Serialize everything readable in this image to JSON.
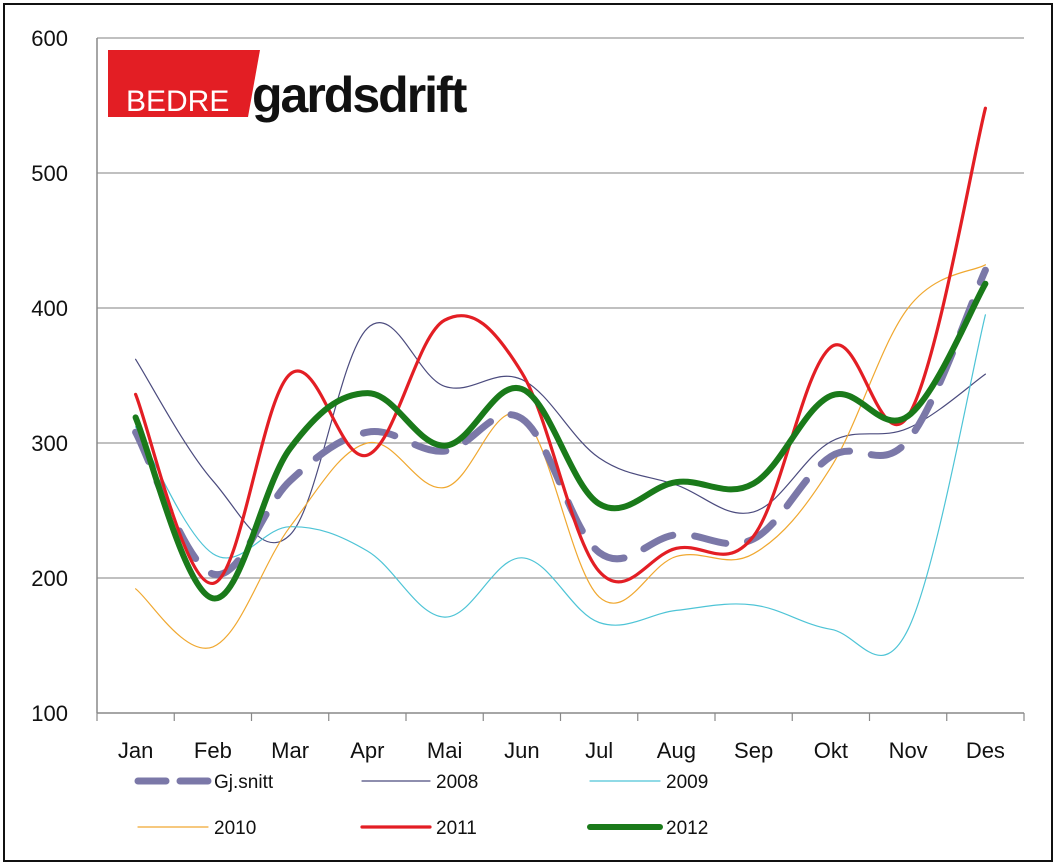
{
  "logo": {
    "part1": "BEDRE",
    "part2": "gardsdrift",
    "accent": "#e31e24"
  },
  "chart_data": {
    "type": "line",
    "title": "",
    "xlabel": "",
    "ylabel": "",
    "ylim": [
      100,
      600
    ],
    "yticks": [
      100,
      200,
      300,
      400,
      500,
      600
    ],
    "grid": true,
    "categories": [
      "Jan",
      "Feb",
      "Mar",
      "Apr",
      "Mai",
      "Jun",
      "Jul",
      "Aug",
      "Sep",
      "Okt",
      "Nov",
      "Des"
    ],
    "series": [
      {
        "name": "2008",
        "color": "#4b4b7e",
        "width": 1.2,
        "dash": "",
        "values": [
          362,
          272,
          232,
          385,
          342,
          347,
          289,
          269,
          249,
          301,
          311,
          351
        ]
      },
      {
        "name": "2009",
        "color": "#4ec4d6",
        "width": 1.2,
        "dash": "",
        "values": [
          312,
          218,
          238,
          220,
          171,
          215,
          167,
          176,
          180,
          162,
          162,
          395
        ]
      },
      {
        "name": "2010",
        "color": "#f0a830",
        "width": 1.2,
        "dash": "",
        "values": [
          192,
          149,
          238,
          300,
          267,
          320,
          186,
          216,
          218,
          282,
          400,
          432
        ]
      },
      {
        "name": "Gj.snitt",
        "color": "#7b78a8",
        "width": 7,
        "dash": "32 22",
        "values": [
          308,
          203,
          272,
          308,
          294,
          318,
          219,
          232,
          229,
          290,
          302,
          428
        ]
      },
      {
        "name": "2011",
        "color": "#e31e24",
        "width": 3.2,
        "dash": "",
        "values": [
          336,
          196,
          351,
          291,
          391,
          352,
          205,
          222,
          231,
          371,
          320,
          548
        ]
      },
      {
        "name": "2012",
        "color": "#1a7a1a",
        "width": 6,
        "dash": "",
        "values": [
          319,
          185,
          296,
          337,
          298,
          340,
          255,
          271,
          270,
          335,
          320,
          418
        ]
      }
    ],
    "legend": [
      {
        "name": "Gj.snitt"
      },
      {
        "name": "2008"
      },
      {
        "name": "2009"
      },
      {
        "name": "2010"
      },
      {
        "name": "2011"
      },
      {
        "name": "2012"
      }
    ],
    "legend_position": "bottom"
  }
}
